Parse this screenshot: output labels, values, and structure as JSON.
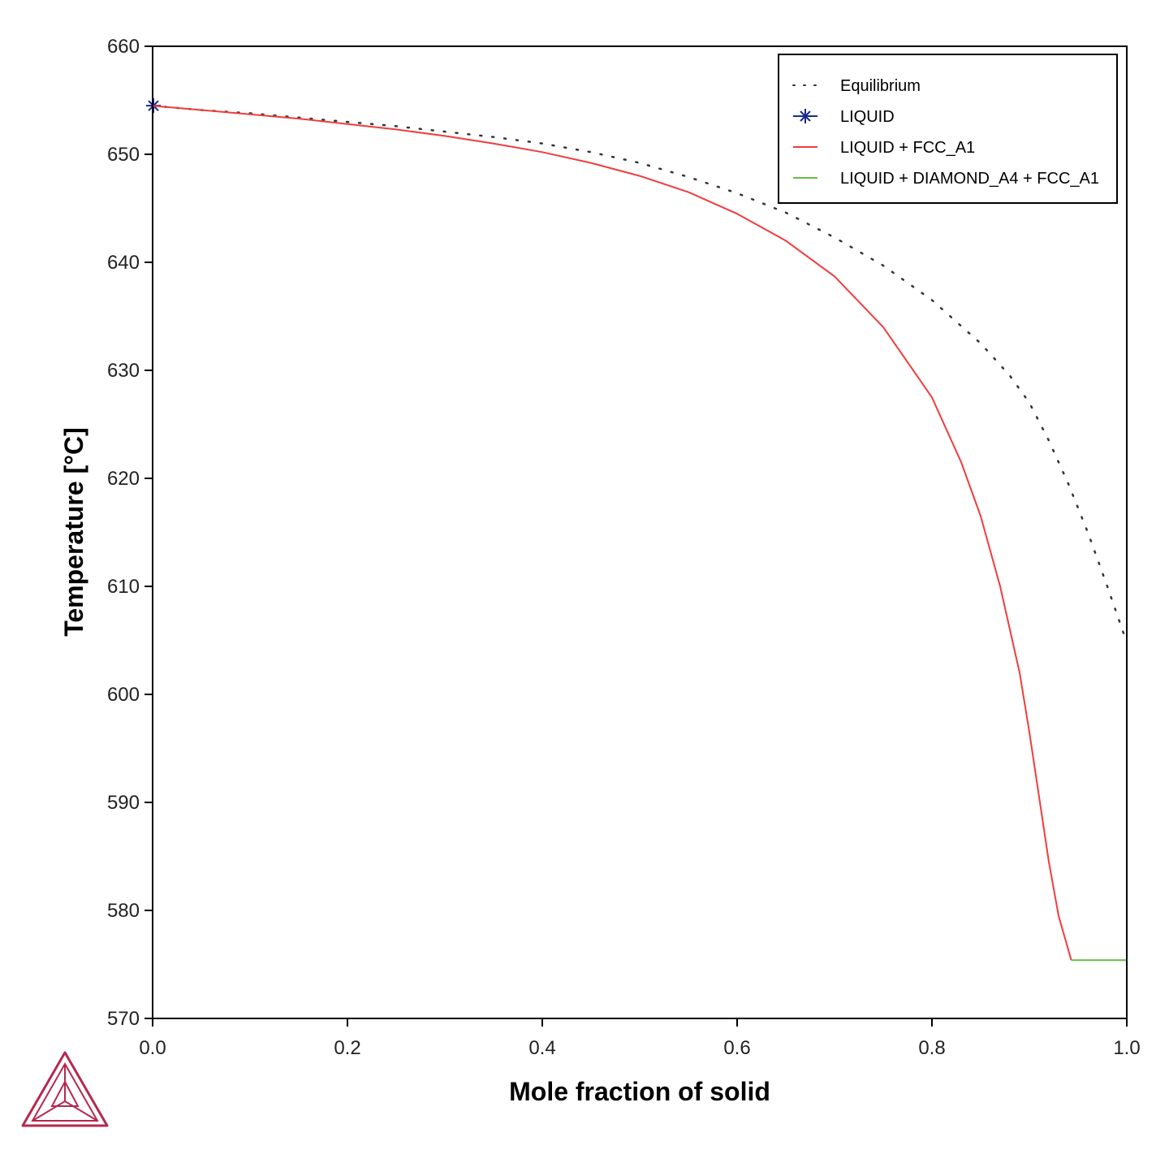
{
  "chart_data": {
    "type": "line",
    "title": "",
    "xlabel": "Mole fraction of solid",
    "ylabel": "Temperature [°C]",
    "xlim": [
      0,
      1
    ],
    "ylim": [
      570,
      660
    ],
    "x_ticks": [
      0.0,
      0.2,
      0.4,
      0.6,
      0.8,
      1.0
    ],
    "x_tick_labels": [
      "0.0",
      "0.2",
      "0.4",
      "0.6",
      "0.8",
      "1.0"
    ],
    "y_ticks": [
      570,
      580,
      590,
      600,
      610,
      620,
      630,
      640,
      650,
      660
    ],
    "y_tick_labels": [
      "570",
      "580",
      "590",
      "600",
      "610",
      "620",
      "630",
      "640",
      "650",
      "660"
    ],
    "grid": false,
    "legend_position": "top-right",
    "series": [
      {
        "name": "Equilibrium",
        "style": "dotted",
        "color": "#333333",
        "x": [
          0.0,
          0.05,
          0.1,
          0.15,
          0.2,
          0.25,
          0.3,
          0.35,
          0.4,
          0.45,
          0.5,
          0.55,
          0.6,
          0.65,
          0.7,
          0.75,
          0.8,
          0.85,
          0.88,
          0.9,
          0.92,
          0.94,
          0.96,
          0.98,
          1.0
        ],
        "y": [
          654.5,
          654.1,
          653.8,
          653.4,
          653.0,
          652.6,
          652.1,
          651.6,
          651.0,
          650.2,
          649.2,
          647.9,
          646.4,
          644.6,
          642.3,
          639.7,
          636.5,
          632.5,
          629.5,
          627.0,
          623.5,
          619.5,
          615.0,
          610.0,
          604.8
        ]
      },
      {
        "name": "LIQUID",
        "style": "marker",
        "color": "#1a2a8a",
        "x": [
          0.0
        ],
        "y": [
          654.5
        ]
      },
      {
        "name": "LIQUID + FCC_A1",
        "style": "solid",
        "color": "#f03c3c",
        "x": [
          0.0,
          0.05,
          0.1,
          0.15,
          0.2,
          0.25,
          0.3,
          0.35,
          0.4,
          0.45,
          0.5,
          0.55,
          0.6,
          0.65,
          0.7,
          0.75,
          0.8,
          0.83,
          0.85,
          0.87,
          0.89,
          0.9,
          0.91,
          0.92,
          0.93,
          0.943
        ],
        "y": [
          654.5,
          654.1,
          653.7,
          653.3,
          652.8,
          652.3,
          651.7,
          651.0,
          650.2,
          649.2,
          648.0,
          646.5,
          644.5,
          642.0,
          638.7,
          634.0,
          627.5,
          621.5,
          616.5,
          610.0,
          602.0,
          596.5,
          590.5,
          584.5,
          579.5,
          575.4
        ]
      },
      {
        "name": "LIQUID + DIAMOND_A4 + FCC_A1",
        "style": "solid",
        "color": "#66bb44",
        "x": [
          0.943,
          1.0
        ],
        "y": [
          575.4,
          575.4
        ]
      }
    ]
  },
  "logo": {
    "icon": "thermo-calc-triangle-logo",
    "color": "#b5294f"
  }
}
